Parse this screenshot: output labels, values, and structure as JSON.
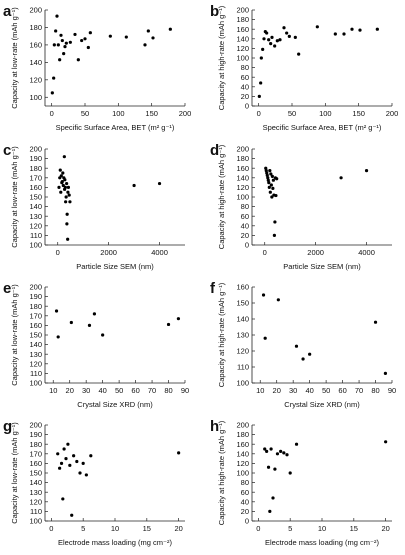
{
  "chart_data": [
    {
      "id": "a",
      "panel_label": "a",
      "type": "scatter",
      "xlabel": "Specific Surface Area, BET (m² g⁻¹)",
      "ylabel": "Capacity at low-rate (mAh g⁻¹)",
      "xlim": [
        -10,
        200
      ],
      "ylim": [
        90,
        200
      ],
      "xticks": [
        0,
        50,
        100,
        150,
        200
      ],
      "yticks": [
        100,
        120,
        140,
        160,
        180,
        200
      ],
      "points": [
        {
          "x": 1,
          "y": 105
        },
        {
          "x": 3,
          "y": 122
        },
        {
          "x": 4,
          "y": 160
        },
        {
          "x": 6,
          "y": 176
        },
        {
          "x": 8,
          "y": 193
        },
        {
          "x": 10,
          "y": 160
        },
        {
          "x": 12,
          "y": 143
        },
        {
          "x": 14,
          "y": 171
        },
        {
          "x": 16,
          "y": 165
        },
        {
          "x": 18,
          "y": 150
        },
        {
          "x": 20,
          "y": 158
        },
        {
          "x": 22,
          "y": 162
        },
        {
          "x": 28,
          "y": 163
        },
        {
          "x": 35,
          "y": 172
        },
        {
          "x": 40,
          "y": 143
        },
        {
          "x": 45,
          "y": 165
        },
        {
          "x": 50,
          "y": 167
        },
        {
          "x": 55,
          "y": 157
        },
        {
          "x": 58,
          "y": 174
        },
        {
          "x": 88,
          "y": 170
        },
        {
          "x": 112,
          "y": 169
        },
        {
          "x": 140,
          "y": 160
        },
        {
          "x": 145,
          "y": 176
        },
        {
          "x": 152,
          "y": 168
        },
        {
          "x": 178,
          "y": 178
        }
      ]
    },
    {
      "id": "b",
      "panel_label": "b",
      "type": "scatter",
      "xlabel": "Specific Surface Area, BET (m² g⁻¹)",
      "ylabel": "Capacity at high-rate (mAh g⁻¹)",
      "xlim": [
        -10,
        200
      ],
      "ylim": [
        0,
        200
      ],
      "xticks": [
        0,
        50,
        100,
        150,
        200
      ],
      "yticks": [
        0,
        20,
        40,
        60,
        80,
        100,
        120,
        140,
        160,
        180,
        200
      ],
      "points": [
        {
          "x": 1,
          "y": 20
        },
        {
          "x": 3,
          "y": 48
        },
        {
          "x": 4,
          "y": 100
        },
        {
          "x": 6,
          "y": 118
        },
        {
          "x": 8,
          "y": 140
        },
        {
          "x": 10,
          "y": 155
        },
        {
          "x": 12,
          "y": 152
        },
        {
          "x": 15,
          "y": 138
        },
        {
          "x": 18,
          "y": 130
        },
        {
          "x": 20,
          "y": 143
        },
        {
          "x": 24,
          "y": 125
        },
        {
          "x": 28,
          "y": 136
        },
        {
          "x": 32,
          "y": 138
        },
        {
          "x": 38,
          "y": 163
        },
        {
          "x": 42,
          "y": 152
        },
        {
          "x": 46,
          "y": 145
        },
        {
          "x": 55,
          "y": 143
        },
        {
          "x": 60,
          "y": 108
        },
        {
          "x": 88,
          "y": 165
        },
        {
          "x": 115,
          "y": 150
        },
        {
          "x": 128,
          "y": 150
        },
        {
          "x": 140,
          "y": 160
        },
        {
          "x": 152,
          "y": 158
        },
        {
          "x": 178,
          "y": 160
        }
      ]
    },
    {
      "id": "c",
      "panel_label": "c",
      "type": "scatter",
      "xlabel": "Particle Size SEM (nm)",
      "ylabel": "Capacity at low-rate (mAh g⁻¹)",
      "xlim": [
        -500,
        5000
      ],
      "ylim": [
        100,
        200
      ],
      "xticks": [
        0,
        2000,
        4000
      ],
      "yticks": [
        100,
        110,
        120,
        130,
        140,
        150,
        160,
        170,
        180,
        190,
        200
      ],
      "points": [
        {
          "x": 50,
          "y": 160
        },
        {
          "x": 80,
          "y": 170
        },
        {
          "x": 100,
          "y": 178
        },
        {
          "x": 120,
          "y": 155
        },
        {
          "x": 140,
          "y": 172
        },
        {
          "x": 160,
          "y": 165
        },
        {
          "x": 180,
          "y": 166
        },
        {
          "x": 200,
          "y": 175
        },
        {
          "x": 220,
          "y": 162
        },
        {
          "x": 240,
          "y": 170
        },
        {
          "x": 260,
          "y": 192
        },
        {
          "x": 270,
          "y": 158
        },
        {
          "x": 280,
          "y": 168
        },
        {
          "x": 300,
          "y": 160
        },
        {
          "x": 310,
          "y": 145
        },
        {
          "x": 330,
          "y": 150
        },
        {
          "x": 350,
          "y": 164
        },
        {
          "x": 360,
          "y": 122
        },
        {
          "x": 370,
          "y": 132
        },
        {
          "x": 390,
          "y": 106
        },
        {
          "x": 400,
          "y": 155
        },
        {
          "x": 420,
          "y": 160
        },
        {
          "x": 450,
          "y": 152
        },
        {
          "x": 480,
          "y": 145
        },
        {
          "x": 3000,
          "y": 162
        },
        {
          "x": 4000,
          "y": 164
        }
      ]
    },
    {
      "id": "d",
      "panel_label": "d",
      "type": "scatter",
      "xlabel": "Particle Size SEM (nm)",
      "ylabel": "Capacity at high-rate (mAh g⁻¹)",
      "xlim": [
        -500,
        5000
      ],
      "ylim": [
        0,
        200
      ],
      "xticks": [
        0,
        2000,
        4000
      ],
      "yticks": [
        0,
        20,
        40,
        60,
        80,
        100,
        120,
        140,
        160,
        180,
        200
      ],
      "points": [
        {
          "x": 40,
          "y": 160
        },
        {
          "x": 60,
          "y": 155
        },
        {
          "x": 80,
          "y": 150
        },
        {
          "x": 100,
          "y": 145
        },
        {
          "x": 120,
          "y": 140
        },
        {
          "x": 140,
          "y": 135
        },
        {
          "x": 160,
          "y": 130
        },
        {
          "x": 180,
          "y": 120
        },
        {
          "x": 200,
          "y": 155
        },
        {
          "x": 220,
          "y": 110
        },
        {
          "x": 240,
          "y": 148
        },
        {
          "x": 260,
          "y": 125
        },
        {
          "x": 280,
          "y": 100
        },
        {
          "x": 300,
          "y": 143
        },
        {
          "x": 320,
          "y": 118
        },
        {
          "x": 340,
          "y": 135
        },
        {
          "x": 360,
          "y": 104
        },
        {
          "x": 380,
          "y": 20
        },
        {
          "x": 400,
          "y": 48
        },
        {
          "x": 420,
          "y": 140
        },
        {
          "x": 440,
          "y": 103
        },
        {
          "x": 470,
          "y": 138
        },
        {
          "x": 3000,
          "y": 140
        },
        {
          "x": 4000,
          "y": 155
        }
      ]
    },
    {
      "id": "e",
      "panel_label": "e",
      "type": "scatter",
      "xlabel": "Crystal Size XRD (nm)",
      "ylabel": "Capacity at low-rate (mAh g⁻¹)",
      "xlim": [
        5,
        90
      ],
      "ylim": [
        100,
        200
      ],
      "xticks": [
        10,
        20,
        30,
        40,
        50,
        60,
        70,
        80,
        90
      ],
      "yticks": [
        100,
        110,
        120,
        130,
        140,
        150,
        160,
        170,
        180,
        190,
        200
      ],
      "points": [
        {
          "x": 12,
          "y": 175
        },
        {
          "x": 13,
          "y": 148
        },
        {
          "x": 21,
          "y": 163
        },
        {
          "x": 32,
          "y": 160
        },
        {
          "x": 35,
          "y": 172
        },
        {
          "x": 40,
          "y": 150
        },
        {
          "x": 80,
          "y": 161
        },
        {
          "x": 86,
          "y": 167
        }
      ]
    },
    {
      "id": "f",
      "panel_label": "f",
      "type": "scatter",
      "xlabel": "Crystal Size XRD (nm)",
      "ylabel": "Capacity at high-rate (mAh g⁻¹)",
      "xlim": [
        5,
        90
      ],
      "ylim": [
        100,
        160
      ],
      "xticks": [
        10,
        20,
        30,
        40,
        50,
        60,
        70,
        80,
        90
      ],
      "yticks": [
        100,
        110,
        120,
        130,
        140,
        150,
        160
      ],
      "points": [
        {
          "x": 12,
          "y": 155
        },
        {
          "x": 13,
          "y": 128
        },
        {
          "x": 21,
          "y": 152
        },
        {
          "x": 32,
          "y": 123
        },
        {
          "x": 36,
          "y": 115
        },
        {
          "x": 40,
          "y": 118
        },
        {
          "x": 80,
          "y": 138
        },
        {
          "x": 86,
          "y": 106
        }
      ]
    },
    {
      "id": "g",
      "panel_label": "g",
      "type": "scatter",
      "xlabel": "Electrode mass loading (mg cm⁻²)",
      "ylabel": "Capacity at low-rate (mAh g⁻¹)",
      "xlim": [
        -1,
        21
      ],
      "ylim": [
        100,
        200
      ],
      "xticks": [
        0,
        5,
        10,
        15,
        20
      ],
      "yticks": [
        100,
        110,
        120,
        130,
        140,
        150,
        160,
        170,
        180,
        190,
        200
      ],
      "points": [
        {
          "x": 1.0,
          "y": 170
        },
        {
          "x": 1.3,
          "y": 155
        },
        {
          "x": 1.6,
          "y": 160
        },
        {
          "x": 1.8,
          "y": 123
        },
        {
          "x": 2.0,
          "y": 175
        },
        {
          "x": 2.3,
          "y": 165
        },
        {
          "x": 2.6,
          "y": 180
        },
        {
          "x": 2.9,
          "y": 158
        },
        {
          "x": 3.2,
          "y": 106
        },
        {
          "x": 3.5,
          "y": 168
        },
        {
          "x": 4.0,
          "y": 162
        },
        {
          "x": 4.5,
          "y": 150
        },
        {
          "x": 5.0,
          "y": 160
        },
        {
          "x": 5.5,
          "y": 148
        },
        {
          "x": 6.2,
          "y": 168
        },
        {
          "x": 20.0,
          "y": 171
        }
      ]
    },
    {
      "id": "h",
      "panel_label": "h",
      "type": "scatter",
      "xlabel": "Electrode mass loading (mg cm⁻²)",
      "ylabel": "Capacity at high-rate (mAh g⁻¹)",
      "xlim": [
        -1,
        21
      ],
      "ylim": [
        0,
        200
      ],
      "xticks": [
        0,
        5,
        10,
        15,
        20
      ],
      "yticks": [
        0,
        20,
        40,
        60,
        80,
        100,
        120,
        140,
        160,
        180,
        200
      ],
      "points": [
        {
          "x": 1.0,
          "y": 150
        },
        {
          "x": 1.3,
          "y": 145
        },
        {
          "x": 1.6,
          "y": 112
        },
        {
          "x": 1.8,
          "y": 20
        },
        {
          "x": 2.0,
          "y": 150
        },
        {
          "x": 2.3,
          "y": 48
        },
        {
          "x": 2.6,
          "y": 108
        },
        {
          "x": 3.0,
          "y": 140
        },
        {
          "x": 3.5,
          "y": 145
        },
        {
          "x": 4.0,
          "y": 142
        },
        {
          "x": 4.5,
          "y": 138
        },
        {
          "x": 5.0,
          "y": 100
        },
        {
          "x": 6.0,
          "y": 160
        },
        {
          "x": 20.0,
          "y": 165
        }
      ]
    }
  ]
}
